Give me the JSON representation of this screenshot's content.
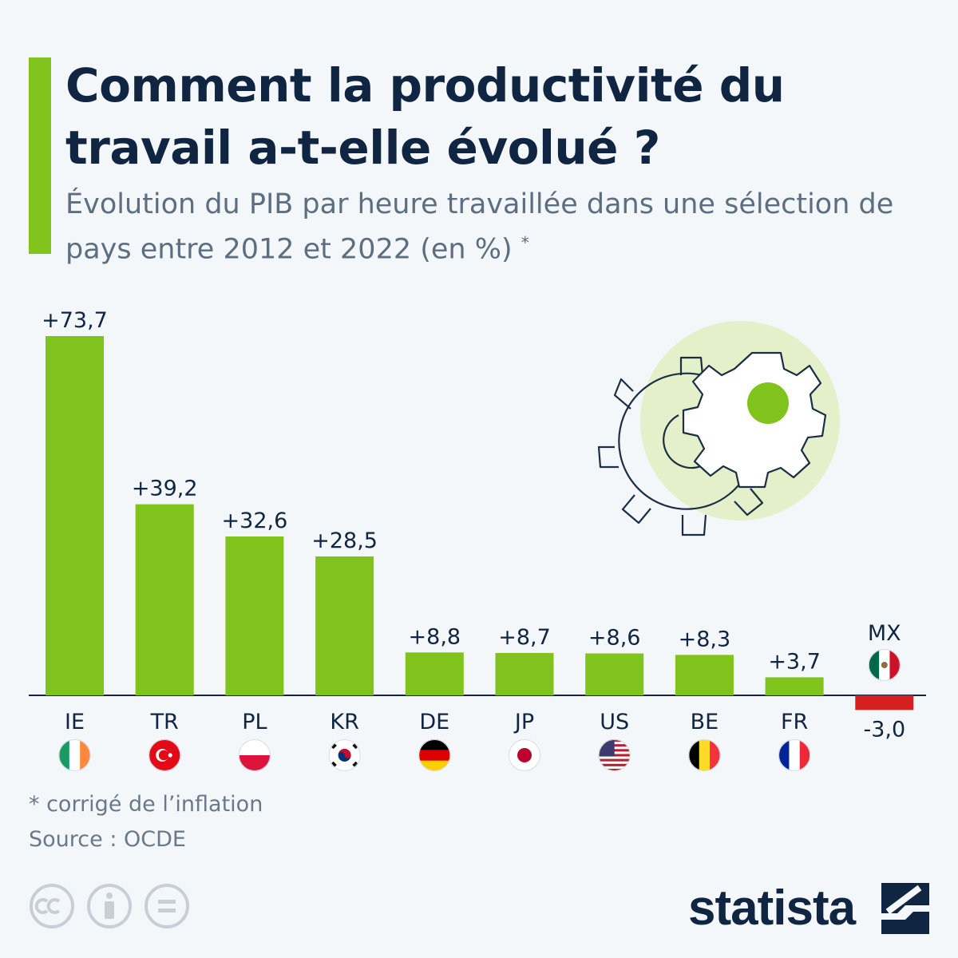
{
  "title": "Comment la productivité du travail a-t-elle évolué ?",
  "subtitle": "Évolution du PIB par heure travaillée dans une sélection de pays entre 2012 et 2022 (en %)",
  "subtitle_mark": "*",
  "footnote": "* corrigé de l’inflation",
  "source": "Source : OCDE",
  "brand": "statista",
  "colors": {
    "positive": "#7fc31c",
    "negative": "#d61f1f",
    "text": "#0f2541",
    "accent": "#7fc31c",
    "muted": "#6a7889",
    "circle": "#e3f0c9"
  },
  "icons": [
    "gears-icon",
    "cc-icon",
    "attribution-icon",
    "no-derivatives-icon",
    "statista-logo-icon"
  ],
  "chart_data": {
    "type": "bar",
    "categories": [
      "IE",
      "TR",
      "PL",
      "KR",
      "DE",
      "JP",
      "US",
      "BE",
      "FR",
      "MX"
    ],
    "values": [
      73.7,
      39.2,
      32.6,
      28.5,
      8.8,
      8.7,
      8.6,
      8.3,
      3.7,
      -3.0
    ],
    "value_labels": [
      "+73,7",
      "+39,2",
      "+32,6",
      "+28,5",
      "+8,8",
      "+8,7",
      "+8,6",
      "+8,3",
      "+3,7",
      "-3,0"
    ],
    "flags": [
      "flag-ireland",
      "flag-turkey",
      "flag-poland",
      "flag-south-korea",
      "flag-germany",
      "flag-japan",
      "flag-usa",
      "flag-belgium",
      "flag-france",
      "flag-mexico"
    ],
    "ylim": [
      -3.0,
      73.7
    ],
    "grid": false,
    "xlabel": "",
    "ylabel": ""
  }
}
